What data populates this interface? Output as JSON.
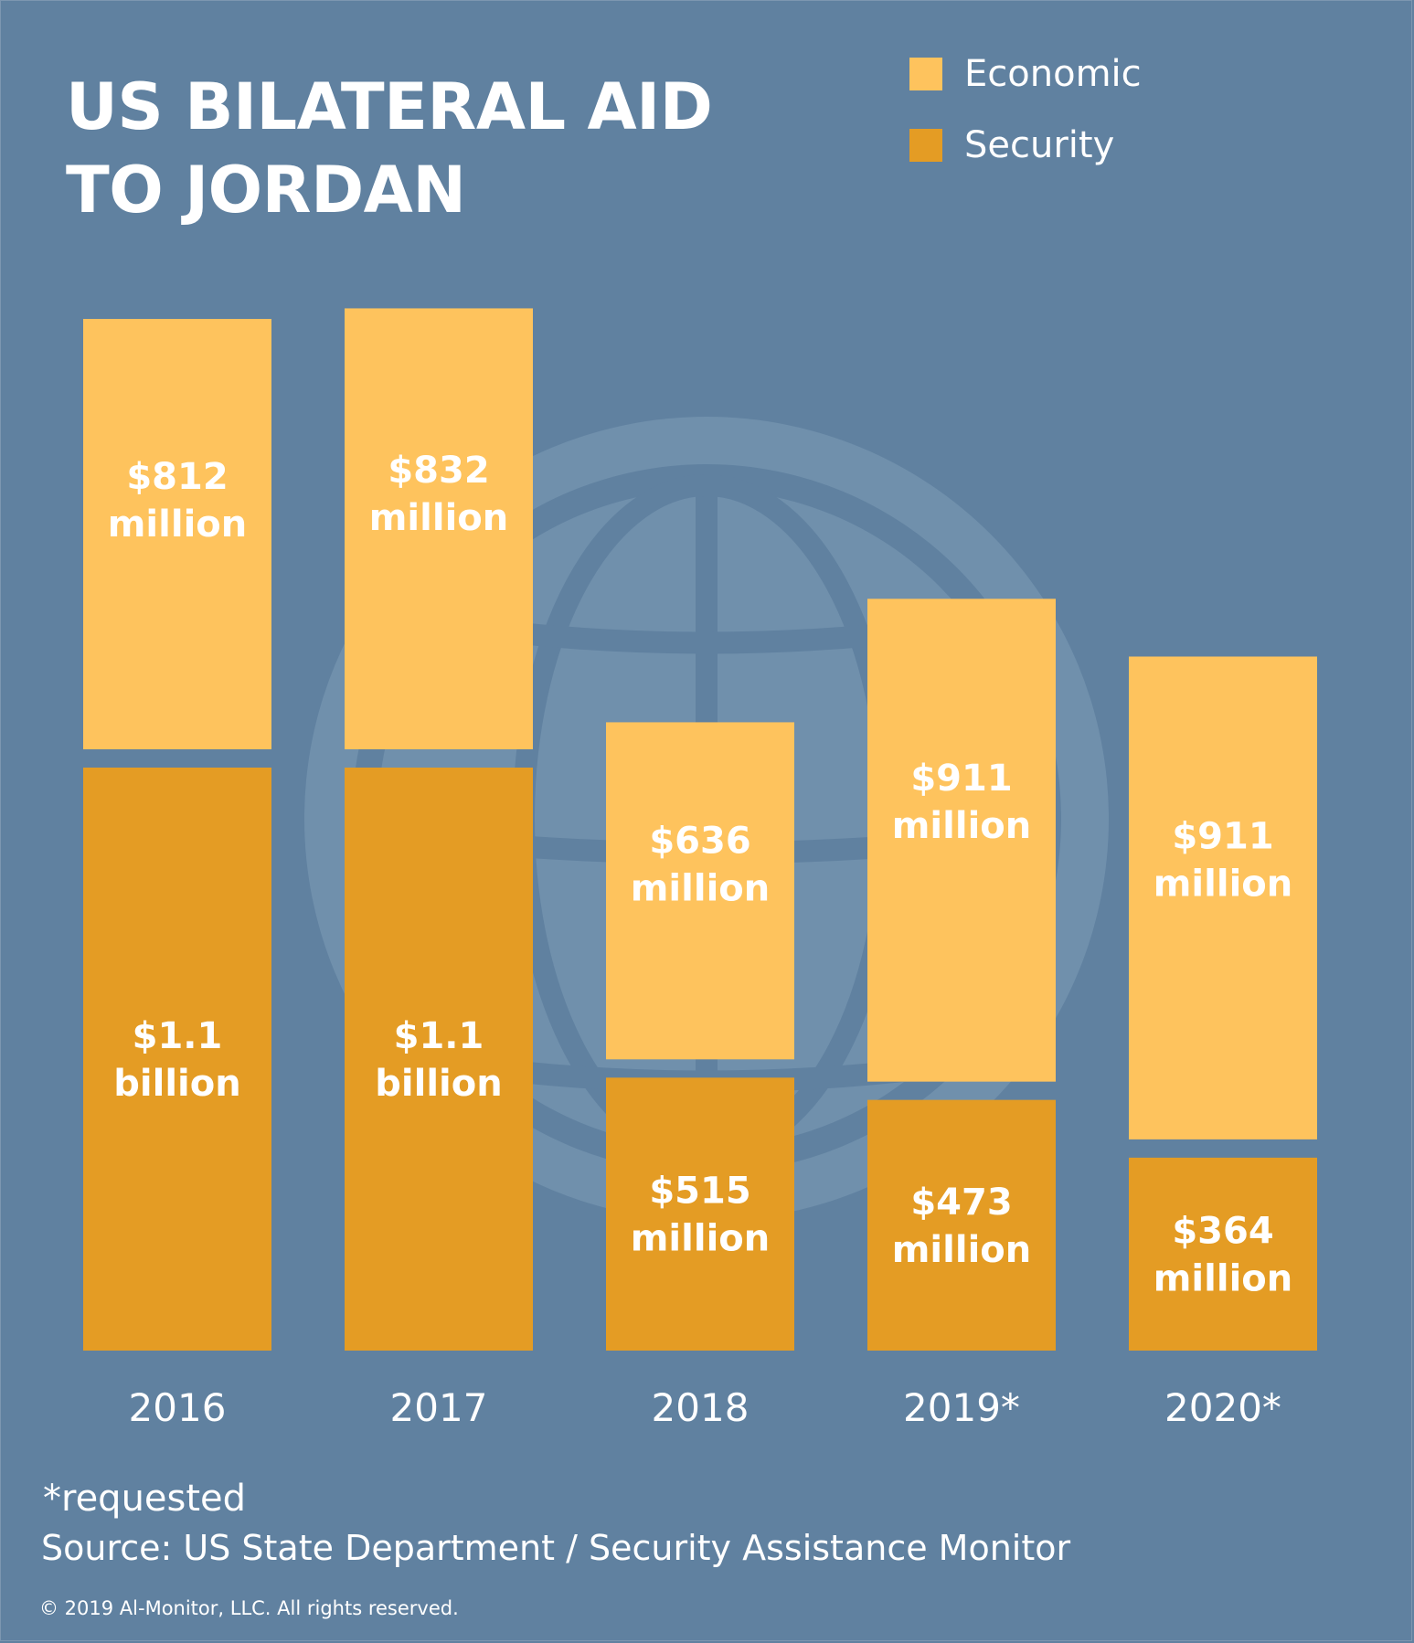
{
  "title": {
    "line1": "US BILATERAL AID",
    "line2": "TO JORDAN"
  },
  "legend": [
    {
      "label": "Economic",
      "color": "#fec35d"
    },
    {
      "label": "Security",
      "color": "#e49c24"
    }
  ],
  "colors": {
    "background": "#6081a0",
    "globe": "#7090ac",
    "economic": "#fec35d",
    "security": "#e49c24",
    "text": "#ffffff"
  },
  "chart_data": {
    "type": "bar",
    "stacked": true,
    "title": "US BILATERAL AID TO JORDAN",
    "xlabel": "",
    "ylabel": "",
    "units": "USD millions",
    "categories": [
      "2016",
      "2017",
      "2018",
      "2019*",
      "2020*"
    ],
    "series": [
      {
        "name": "Security",
        "values": [
          1100,
          1100,
          515,
          473,
          364
        ],
        "labels": [
          [
            "$1.1",
            "billion"
          ],
          [
            "$1.1",
            "billion"
          ],
          [
            "$515",
            "million"
          ],
          [
            "$473",
            "million"
          ],
          [
            "$364",
            "million"
          ]
        ]
      },
      {
        "name": "Economic",
        "values": [
          812,
          832,
          636,
          911,
          911
        ],
        "labels": [
          [
            "$812",
            "million"
          ],
          [
            "$832",
            "million"
          ],
          [
            "$636",
            "million"
          ],
          [
            "$911",
            "million"
          ],
          [
            "$911",
            "million"
          ]
        ]
      }
    ],
    "grid": false,
    "legend_position": "top-right",
    "background_decoration": "globe-icon"
  },
  "footer": {
    "note": "*requested",
    "source": "Source: US State Department / Security Assistance Monitor",
    "copyright": "© 2019 Al-Monitor, LLC. All rights reserved."
  }
}
